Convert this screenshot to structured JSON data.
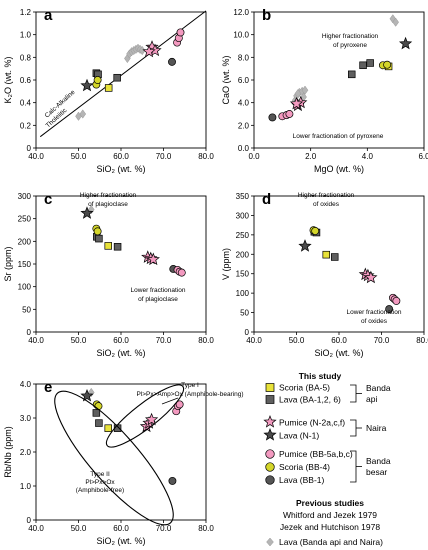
{
  "colors": {
    "scoria_ba": "#e8e23a",
    "lava_ba": "#5f5f5f",
    "pumice": "#f39ac0",
    "pumice_n2": "#f39ac0",
    "lava_n1": "#4a4a4a",
    "scoria_bb": "#d4d62a",
    "lava_bb": "#555555",
    "previous": "#b5b5b5"
  },
  "legend": {
    "this_study": "This study",
    "scoria_ba": "Scoria (BA-5)",
    "lava_ba": "Lava (BA-1,2, 6)",
    "pumice_n": "Pumice (N-2a,c,f)",
    "lava_n": "Lava (N-1)",
    "pumice_bb": "Pumice (BB-5a,b,c)",
    "scoria_bb": "Scoria (BB-4)",
    "lava_bb": "Lava (BB-1)",
    "banda_api_1": "Banda",
    "banda_api_2": "api",
    "naira": "Naira",
    "banda_besar_1": "Banda",
    "banda_besar_2": "besar",
    "previous": "Previous studies",
    "ref1": "Whitford and Jezek 1979",
    "ref2": "Jezek and Hutchison 1978",
    "lava_prev": "Lava (Banda api and Naira)"
  },
  "chart_data": [
    {
      "panel": "a",
      "type": "scatter",
      "xlabel": "SiO₂ (wt. %)",
      "ylabel": "K₂O (wt. %)",
      "xlim": [
        40,
        80
      ],
      "ylim": [
        0,
        1.2
      ],
      "xticks": [
        "40.0",
        "50.0",
        "60.0",
        "70.0",
        "80.0"
      ],
      "yticks": [
        "0",
        "0.2",
        "0.4",
        "0.6",
        "0.8",
        "1.0",
        "1.2"
      ],
      "annotations": [
        "Calc-Alkaline",
        "Tholeiitic"
      ],
      "divider": [
        [
          41,
          0.1
        ],
        [
          80,
          1.21
        ]
      ],
      "series": [
        {
          "name": "Scoria (BA-5)",
          "points": [
            [
              57.1,
              0.53
            ]
          ]
        },
        {
          "name": "Lava (BA-1,2, 6)",
          "points": [
            [
              54.2,
              0.66
            ],
            [
              54.6,
              0.65
            ],
            [
              59.1,
              0.62
            ]
          ]
        },
        {
          "name": "Pumice (N-2a,c,f)",
          "points": [
            [
              67.3,
              0.89
            ],
            [
              68.0,
              0.86
            ],
            [
              66.6,
              0.85
            ]
          ]
        },
        {
          "name": "Lava (N-1)",
          "points": [
            [
              52.0,
              0.55
            ]
          ]
        },
        {
          "name": "Pumice (BB-5a,b,c)",
          "points": [
            [
              73.2,
              0.93
            ],
            [
              73.6,
              0.97
            ],
            [
              74.0,
              1.02
            ]
          ]
        },
        {
          "name": "Scoria (BB-4)",
          "points": [
            [
              54.2,
              0.56
            ],
            [
              54.5,
              0.6
            ]
          ]
        },
        {
          "name": "Lava (BB-1)",
          "points": [
            [
              72.0,
              0.76
            ]
          ]
        },
        {
          "name": "Lava (Banda api and Naira)",
          "points": [
            [
              50.0,
              0.28
            ],
            [
              51.0,
              0.3
            ],
            [
              61.5,
              0.79
            ],
            [
              62.0,
              0.83
            ],
            [
              62.5,
              0.85
            ],
            [
              63.0,
              0.86
            ],
            [
              63.5,
              0.87
            ],
            [
              64.0,
              0.88
            ],
            [
              64.5,
              0.87
            ],
            [
              65.0,
              0.86
            ]
          ]
        }
      ]
    },
    {
      "panel": "b",
      "type": "scatter",
      "xlabel": "MgO (wt. %)",
      "ylabel": "CaO (wt. %)",
      "xlim": [
        0,
        6
      ],
      "ylim": [
        0,
        12
      ],
      "xticks": [
        "0.0",
        "2.0",
        "4.0",
        "6.0"
      ],
      "yticks": [
        "0.0",
        "2.0",
        "4.0",
        "6.0",
        "8.0",
        "10.0",
        "12.0"
      ],
      "annotations": [
        "Higher fractionation",
        "of pyroxene",
        "Lower fractionation of pyroxene"
      ],
      "series": [
        {
          "name": "Scoria (BA-5)",
          "points": [
            [
              4.75,
              7.2
            ]
          ]
        },
        {
          "name": "Lava (BA-1,2, 6)",
          "points": [
            [
              3.45,
              6.5
            ],
            [
              3.85,
              7.3
            ],
            [
              4.1,
              7.5
            ]
          ]
        },
        {
          "name": "Pumice (N-2a,c,f)",
          "points": [
            [
              1.55,
              3.75
            ],
            [
              1.65,
              4.0
            ],
            [
              1.5,
              3.9
            ]
          ]
        },
        {
          "name": "Lava (N-1)",
          "points": [
            [
              5.35,
              9.2
            ]
          ]
        },
        {
          "name": "Pumice (BB-5a,b,c)",
          "points": [
            [
              1.0,
              2.8
            ],
            [
              1.15,
              2.9
            ],
            [
              1.25,
              3.0
            ]
          ]
        },
        {
          "name": "Scoria (BB-4)",
          "points": [
            [
              4.55,
              7.3
            ],
            [
              4.7,
              7.35
            ]
          ]
        },
        {
          "name": "Lava (BB-1)",
          "points": [
            [
              0.65,
              2.7
            ]
          ]
        },
        {
          "name": "Lava (Banda api and Naira)",
          "points": [
            [
              4.9,
              11.4
            ],
            [
              5.0,
              11.1
            ],
            [
              1.45,
              4.2
            ],
            [
              1.5,
              4.6
            ],
            [
              1.6,
              4.9
            ],
            [
              1.7,
              5.0
            ],
            [
              1.8,
              5.1
            ],
            [
              1.55,
              4.8
            ],
            [
              1.75,
              4.5
            ]
          ]
        }
      ]
    },
    {
      "panel": "c",
      "type": "scatter",
      "xlabel": "SiO₂ (wt. %)",
      "ylabel": "Sr (ppm)",
      "xlim": [
        40,
        80
      ],
      "ylim": [
        0,
        300
      ],
      "xticks": [
        "40.0",
        "50.0",
        "60.0",
        "70.0",
        "80.0"
      ],
      "yticks": [
        "0",
        "50",
        "100",
        "150",
        "200",
        "250",
        "300"
      ],
      "annotations": [
        "Higher fractionation",
        "of plagioclase",
        "Lower fractionation",
        "of plagioclase"
      ],
      "series": [
        {
          "name": "Scoria (BA-5)",
          "points": [
            [
              57.0,
              190
            ]
          ]
        },
        {
          "name": "Lava (BA-1,2, 6)",
          "points": [
            [
              54.3,
              210
            ],
            [
              54.8,
              206
            ],
            [
              59.2,
              188
            ]
          ]
        },
        {
          "name": "Pumice (N-2a,c,f)",
          "points": [
            [
              66.3,
              165
            ],
            [
              67.0,
              162
            ],
            [
              67.6,
              160
            ]
          ]
        },
        {
          "name": "Lava (N-1)",
          "points": [
            [
              52.0,
              262
            ]
          ]
        },
        {
          "name": "Pumice (BB-5a,b,c)",
          "points": [
            [
              73.3,
              137
            ],
            [
              73.8,
              133
            ],
            [
              74.3,
              131
            ]
          ]
        },
        {
          "name": "Scoria (BB-4)",
          "points": [
            [
              54.2,
              228
            ],
            [
              54.5,
              222
            ]
          ]
        },
        {
          "name": "Lava (BB-1)",
          "points": [
            [
              72.3,
              139
            ]
          ]
        },
        {
          "name": "Lava (Banda api and Naira)",
          "points": [
            [
              53.0,
              270
            ]
          ]
        }
      ]
    },
    {
      "panel": "d",
      "type": "scatter",
      "xlabel": "SiO₂ (wt. %)",
      "ylabel": "V (ppm)",
      "xlim": [
        40,
        80
      ],
      "ylim": [
        0,
        350
      ],
      "xticks": [
        "40.0",
        "50.0",
        "60.0",
        "70.0",
        "80.0"
      ],
      "yticks": [
        "0",
        "50",
        "100",
        "150",
        "200",
        "250",
        "300",
        "350"
      ],
      "annotations": [
        "Higher fractionation",
        "of oxides",
        "Lower fractionation",
        "of oxides"
      ],
      "series": [
        {
          "name": "Scoria (BA-5)",
          "points": [
            [
              57.0,
              199
            ]
          ]
        },
        {
          "name": "Lava (BA-1,2, 6)",
          "points": [
            [
              54.2,
              258
            ],
            [
              54.7,
              256
            ],
            [
              59.0,
              193
            ]
          ]
        },
        {
          "name": "Pumice (N-2a,c,f)",
          "points": [
            [
              66.2,
              148
            ],
            [
              66.8,
              145
            ],
            [
              67.5,
              140
            ]
          ]
        },
        {
          "name": "Lava (N-1)",
          "points": [
            [
              52.0,
              221
            ]
          ]
        },
        {
          "name": "Pumice (BB-5a,b,c)",
          "points": [
            [
              72.7,
              88
            ],
            [
              73.1,
              84
            ],
            [
              73.5,
              80
            ]
          ]
        },
        {
          "name": "Scoria (BB-4)",
          "points": [
            [
              54.0,
              262
            ],
            [
              54.4,
              260
            ]
          ]
        },
        {
          "name": "Lava (BB-1)",
          "points": [
            [
              71.8,
              59
            ]
          ]
        },
        {
          "name": "Lava (Banda api and Naira)",
          "points": []
        }
      ]
    },
    {
      "panel": "e",
      "type": "scatter",
      "xlabel": "SiO₂ (wt. %)",
      "ylabel": "Rb/Nb (ppm)",
      "xlim": [
        40,
        80
      ],
      "ylim": [
        0,
        4
      ],
      "xticks": [
        "40.0",
        "50.0",
        "60.0",
        "70.0",
        "80.0"
      ],
      "yticks": [
        "0",
        "1.0",
        "2.0",
        "3.0",
        "4.0"
      ],
      "annotations": [
        "Type I",
        "Pl>Px>Amp>Ox (Amphibole-bearing)",
        "Type II",
        "Pl>Px>Ox",
        "(Amphibole-free)"
      ],
      "series": [
        {
          "name": "Scoria (BA-5)",
          "points": [
            [
              57.0,
              2.7
            ]
          ]
        },
        {
          "name": "Lava (BA-1,2, 6)",
          "points": [
            [
              54.2,
              3.15
            ],
            [
              54.8,
              2.85
            ],
            [
              59.2,
              2.7
            ]
          ]
        },
        {
          "name": "Pumice (N-2a,c,f)",
          "points": [
            [
              66.0,
              2.75
            ],
            [
              66.6,
              2.85
            ],
            [
              67.2,
              2.95
            ]
          ]
        },
        {
          "name": "Lava (N-1)",
          "points": [
            [
              52.0,
              3.65
            ]
          ]
        },
        {
          "name": "Pumice (BB-5a,b,c)",
          "points": [
            [
              73.0,
              3.2
            ],
            [
              73.4,
              3.35
            ],
            [
              73.8,
              3.4
            ]
          ]
        },
        {
          "name": "Scoria (BB-4)",
          "points": [
            [
              54.3,
              3.4
            ],
            [
              54.7,
              3.35
            ]
          ]
        },
        {
          "name": "Lava (BB-1)",
          "points": [
            [
              72.1,
              1.15
            ]
          ]
        },
        {
          "name": "Lava (Banda api and Naira)",
          "points": [
            [
              53.0,
              3.75
            ]
          ]
        }
      ]
    }
  ]
}
